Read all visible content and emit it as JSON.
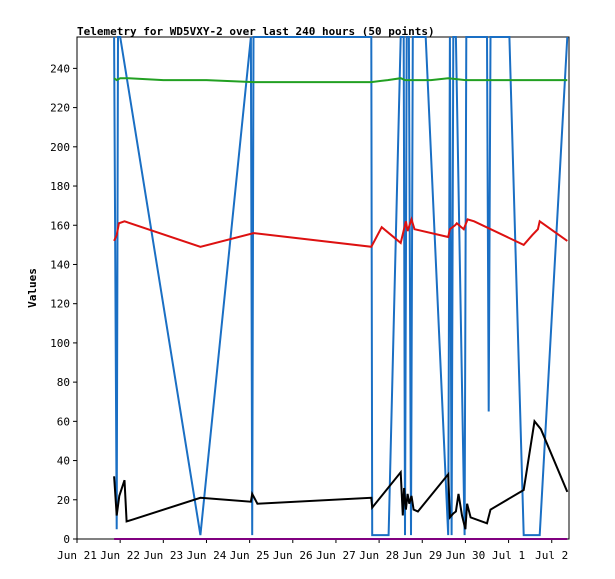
{
  "chart_data": {
    "type": "line",
    "title": "Telemetry for WD5VXY-2 over last 240 hours (50 points)",
    "xlabel": "",
    "ylabel": "Values",
    "ylim": [
      0,
      256
    ],
    "yticks": [
      0,
      20,
      40,
      60,
      80,
      100,
      120,
      140,
      160,
      180,
      200,
      220,
      240
    ],
    "xlim": [
      0,
      11.4
    ],
    "xticks": [
      {
        "v": 0,
        "label": "Jun 21"
      },
      {
        "v": 1,
        "label": "Jun 22"
      },
      {
        "v": 2,
        "label": "Jun 23"
      },
      {
        "v": 3,
        "label": "Jun 24"
      },
      {
        "v": 4,
        "label": "Jun 25"
      },
      {
        "v": 5,
        "label": "Jun 26"
      },
      {
        "v": 6,
        "label": "Jun 27"
      },
      {
        "v": 7,
        "label": "Jun 28"
      },
      {
        "v": 8,
        "label": "Jun 29"
      },
      {
        "v": 9,
        "label": "Jun 30"
      },
      {
        "v": 10,
        "label": "Jul 1"
      },
      {
        "v": 11,
        "label": "Jul 2"
      }
    ],
    "grid": false,
    "legend": "none",
    "series": [
      {
        "color": "#1a6fc4",
        "points": [
          [
            0.86,
            256
          ],
          [
            0.89,
            130
          ],
          [
            0.92,
            5
          ],
          [
            0.95,
            256
          ],
          [
            1.0,
            256
          ],
          [
            2.86,
            2
          ],
          [
            4.03,
            256
          ],
          [
            4.06,
            2
          ],
          [
            4.09,
            256
          ],
          [
            6.82,
            256
          ],
          [
            6.84,
            2
          ],
          [
            7.22,
            2
          ],
          [
            7.5,
            256
          ],
          [
            7.57,
            256
          ],
          [
            7.6,
            2
          ],
          [
            7.64,
            256
          ],
          [
            7.69,
            256
          ],
          [
            7.74,
            2
          ],
          [
            7.78,
            256
          ],
          [
            8.08,
            256
          ],
          [
            8.6,
            2
          ],
          [
            8.64,
            256
          ],
          [
            8.68,
            2
          ],
          [
            8.72,
            256
          ],
          [
            8.78,
            256
          ],
          [
            8.98,
            2
          ],
          [
            9.02,
            256
          ],
          [
            9.18,
            256
          ],
          [
            9.5,
            256
          ],
          [
            9.54,
            65
          ],
          [
            9.58,
            256
          ],
          [
            10.02,
            256
          ],
          [
            10.35,
            2
          ],
          [
            10.72,
            2
          ],
          [
            11.36,
            256
          ]
        ]
      },
      {
        "color": "#22a022",
        "points": [
          [
            0.86,
            235
          ],
          [
            0.92,
            234
          ],
          [
            1.0,
            235
          ],
          [
            1.2,
            235
          ],
          [
            2.0,
            234
          ],
          [
            3.0,
            234
          ],
          [
            4.1,
            233
          ],
          [
            5.0,
            233
          ],
          [
            6.0,
            233
          ],
          [
            6.82,
            233
          ],
          [
            7.2,
            234
          ],
          [
            7.5,
            235
          ],
          [
            7.6,
            234
          ],
          [
            7.8,
            234
          ],
          [
            8.2,
            234
          ],
          [
            8.6,
            235
          ],
          [
            9.0,
            234
          ],
          [
            9.5,
            234
          ],
          [
            10.0,
            234
          ],
          [
            10.5,
            234
          ],
          [
            11.0,
            234
          ],
          [
            11.36,
            234
          ]
        ]
      },
      {
        "color": "#dd1111",
        "points": [
          [
            0.86,
            152
          ],
          [
            0.92,
            155
          ],
          [
            0.97,
            161
          ],
          [
            1.1,
            162
          ],
          [
            2.86,
            149
          ],
          [
            4.09,
            156
          ],
          [
            6.82,
            149
          ],
          [
            7.06,
            159
          ],
          [
            7.5,
            151
          ],
          [
            7.62,
            162
          ],
          [
            7.66,
            157
          ],
          [
            7.75,
            163
          ],
          [
            7.82,
            158
          ],
          [
            8.6,
            154
          ],
          [
            8.64,
            158
          ],
          [
            8.76,
            160
          ],
          [
            8.8,
            161
          ],
          [
            8.96,
            158
          ],
          [
            9.05,
            163
          ],
          [
            9.2,
            162
          ],
          [
            10.35,
            150
          ],
          [
            10.55,
            155
          ],
          [
            10.68,
            158
          ],
          [
            10.72,
            162
          ],
          [
            11.36,
            152
          ]
        ]
      },
      {
        "color": "#000000",
        "points": [
          [
            0.86,
            32
          ],
          [
            0.92,
            12
          ],
          [
            0.98,
            22
          ],
          [
            1.1,
            30
          ],
          [
            1.15,
            9
          ],
          [
            1.3,
            10
          ],
          [
            2.86,
            21
          ],
          [
            4.03,
            19
          ],
          [
            4.06,
            23
          ],
          [
            4.18,
            18
          ],
          [
            6.82,
            21
          ],
          [
            6.84,
            16
          ],
          [
            7.5,
            34
          ],
          [
            7.55,
            12
          ],
          [
            7.58,
            26
          ],
          [
            7.62,
            15
          ],
          [
            7.66,
            23
          ],
          [
            7.7,
            18
          ],
          [
            7.75,
            22
          ],
          [
            7.8,
            15
          ],
          [
            7.9,
            14
          ],
          [
            8.6,
            33
          ],
          [
            8.64,
            11
          ],
          [
            8.72,
            13
          ],
          [
            8.78,
            14
          ],
          [
            8.84,
            23
          ],
          [
            8.92,
            12
          ],
          [
            9.0,
            5
          ],
          [
            9.04,
            18
          ],
          [
            9.12,
            11
          ],
          [
            9.5,
            8
          ],
          [
            9.58,
            15
          ],
          [
            10.35,
            25
          ],
          [
            10.6,
            60
          ],
          [
            10.75,
            56
          ],
          [
            11.36,
            24
          ]
        ]
      },
      {
        "color": "#800080",
        "points": [
          [
            0.86,
            0
          ],
          [
            11.36,
            0
          ]
        ]
      }
    ]
  }
}
